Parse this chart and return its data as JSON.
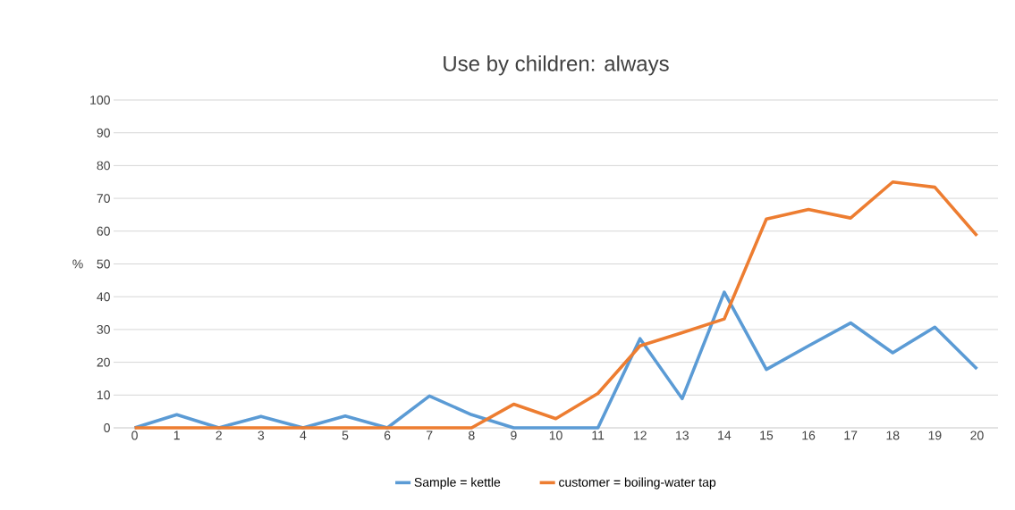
{
  "chart_data": {
    "type": "line",
    "title": "Use by children: always",
    "ylabel": "%",
    "categories": [
      "0",
      "1",
      "2",
      "3",
      "4",
      "5",
      "6",
      "7",
      "8",
      "9",
      "10",
      "11",
      "12",
      "13",
      "14",
      "15",
      "16",
      "17",
      "18",
      "19",
      "20"
    ],
    "series": [
      {
        "name": "Sample = kettle",
        "color": "#5b9bd5",
        "values": [
          0,
          4,
          0,
          3.5,
          0,
          3.6,
          0,
          9.7,
          4,
          0,
          0,
          0,
          27.2,
          8.9,
          41.4,
          17.8,
          25,
          32,
          22.9,
          30.7,
          18
        ]
      },
      {
        "name": "customer = boiling-water tap",
        "color": "#ed7d31",
        "values": [
          0,
          0,
          0,
          0,
          0,
          0,
          0,
          0,
          0,
          7.2,
          2.8,
          10.5,
          25,
          29,
          33.2,
          63.7,
          66.6,
          64,
          75,
          73.4,
          58.6
        ]
      }
    ],
    "ylim": [
      0,
      100
    ],
    "yticks": [
      0,
      10,
      20,
      30,
      40,
      50,
      60,
      70,
      80,
      90,
      100
    ],
    "grid": "y",
    "legend": "bottom",
    "marker": "none",
    "line_style": "solid"
  }
}
